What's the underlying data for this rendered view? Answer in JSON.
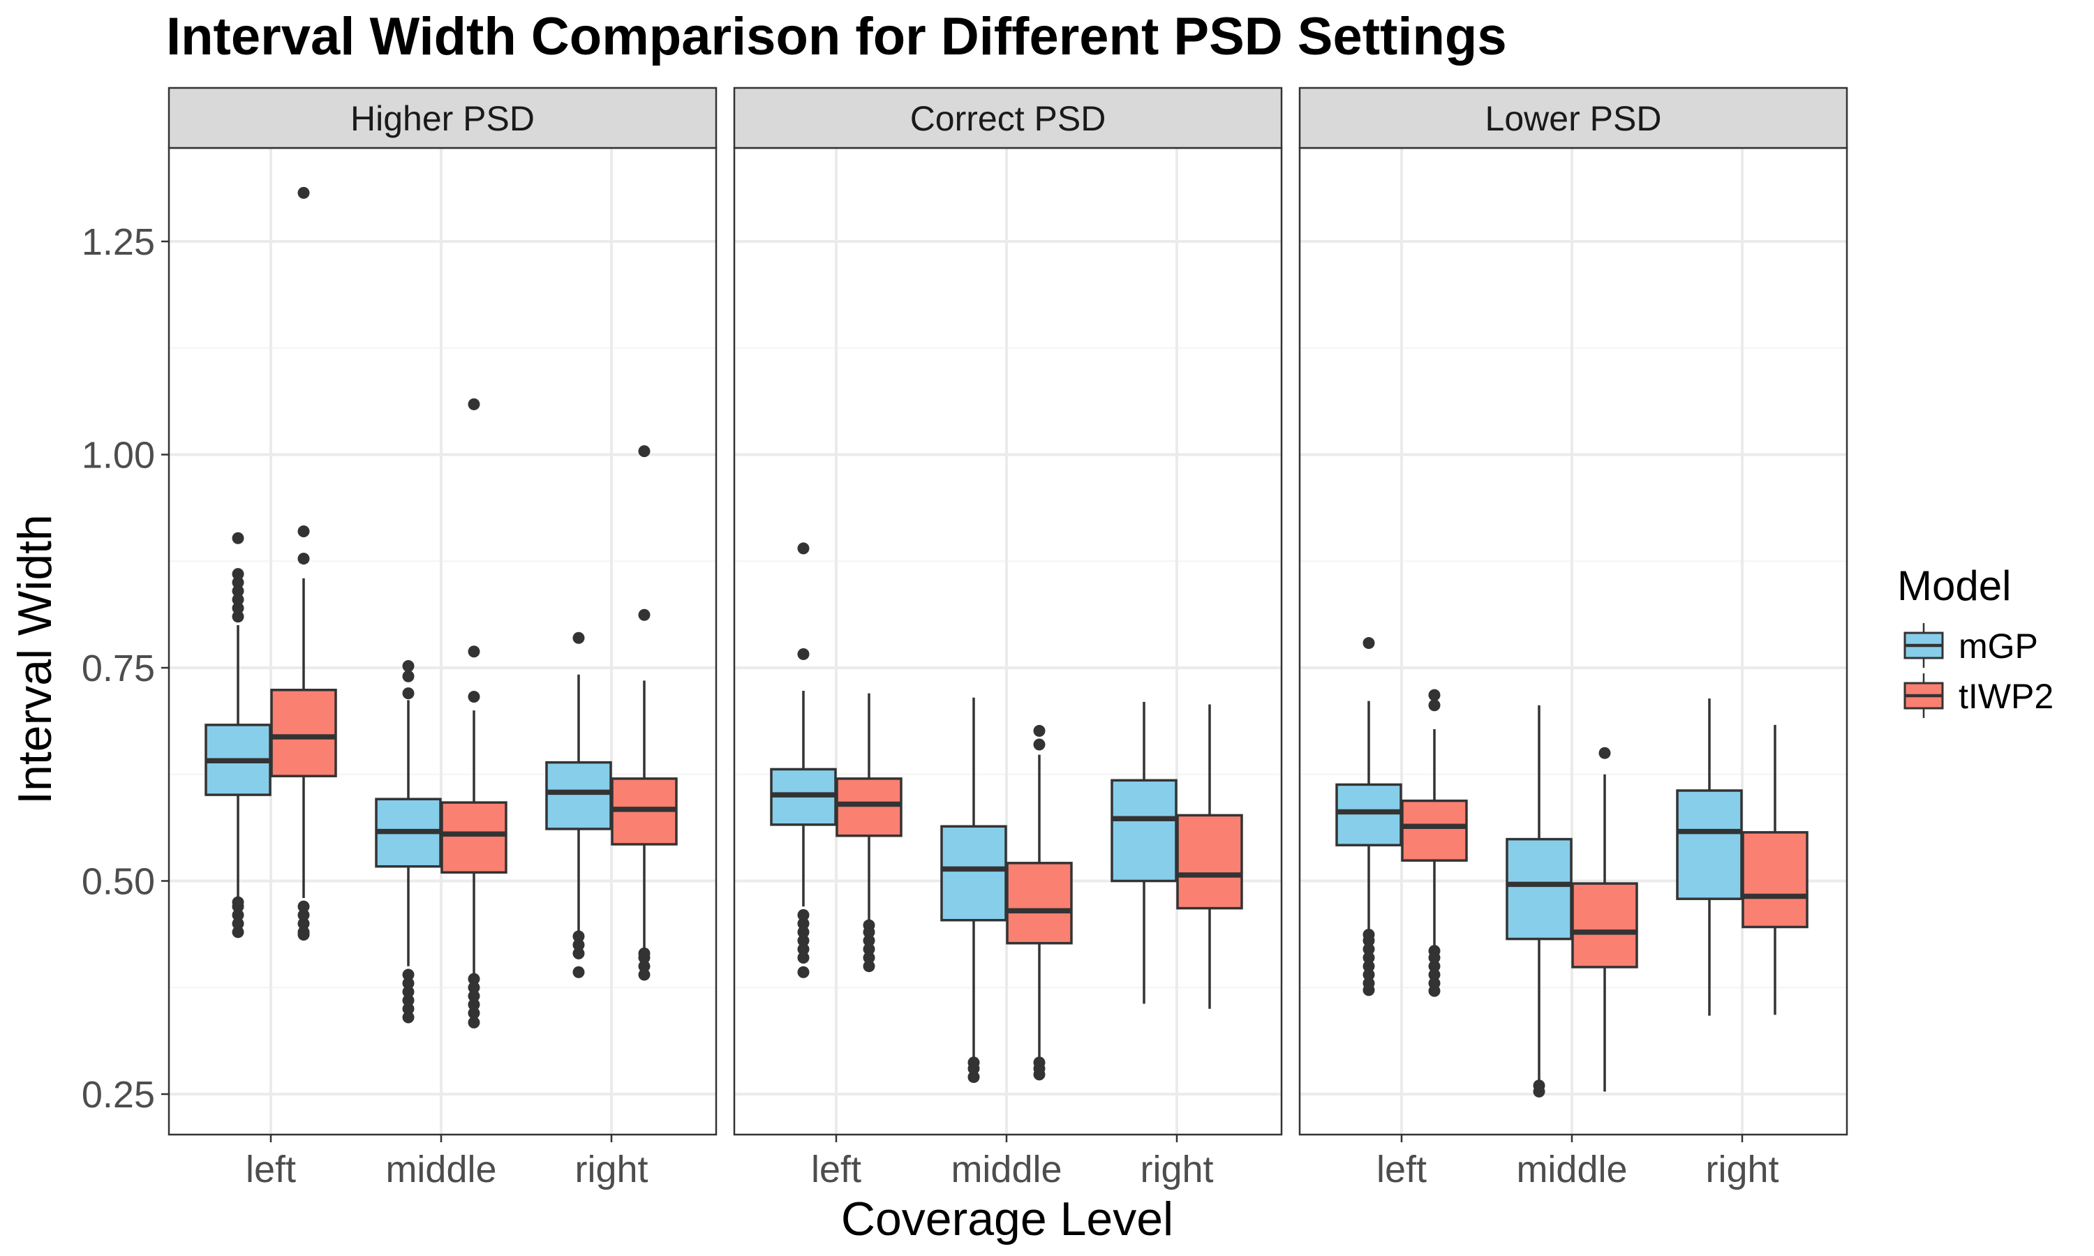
{
  "chart_data": {
    "type": "boxplot",
    "title": "Interval Width Comparison for Different PSD Settings",
    "xlabel": "Coverage Level",
    "ylabel": "Interval Width",
    "ylim": [
      0.2,
      1.36
    ],
    "yticks": [
      0.25,
      0.5,
      0.75,
      1.0
    ],
    "ytick_labels": [
      "0.25",
      "0.50",
      "0.75",
      "1.00"
    ],
    "extra_ytick": {
      "value": 1.25,
      "label": "1.25"
    },
    "categories": [
      "left",
      "middle",
      "right"
    ],
    "grid": true,
    "legend": {
      "title": "Model",
      "position": "right",
      "items": [
        {
          "name": "mGP",
          "color": "#87CEEB"
        },
        {
          "name": "tIWP2",
          "color": "#FA8072"
        }
      ]
    },
    "panels": [
      {
        "label": "Higher PSD",
        "groups": [
          {
            "category": "left",
            "model": "mGP",
            "whislo": 0.48,
            "q1": 0.601,
            "med": 0.641,
            "q3": 0.683,
            "whishi": 0.8,
            "outliers": [
              0.44,
              0.45,
              0.46,
              0.47,
              0.475,
              0.81,
              0.82,
              0.83,
              0.84,
              0.85,
              0.86,
              0.902
            ]
          },
          {
            "category": "left",
            "model": "tIWP2",
            "whislo": 0.48,
            "q1": 0.623,
            "med": 0.669,
            "q3": 0.724,
            "whishi": 0.855,
            "outliers": [
              0.437,
              0.44,
              0.45,
              0.46,
              0.47,
              0.878,
              0.91,
              1.307
            ]
          },
          {
            "category": "middle",
            "model": "mGP",
            "whislo": 0.4,
            "q1": 0.517,
            "med": 0.558,
            "q3": 0.596,
            "whishi": 0.712,
            "outliers": [
              0.34,
              0.35,
              0.36,
              0.37,
              0.38,
              0.39,
              0.72,
              0.74,
              0.752
            ]
          },
          {
            "category": "middle",
            "model": "tIWP2",
            "whislo": 0.39,
            "q1": 0.51,
            "med": 0.555,
            "q3": 0.592,
            "whishi": 0.7,
            "outliers": [
              0.334,
              0.345,
              0.355,
              0.365,
              0.375,
              0.385,
              0.716,
              0.769,
              1.059
            ]
          },
          {
            "category": "right",
            "model": "mGP",
            "whislo": 0.44,
            "q1": 0.561,
            "med": 0.604,
            "q3": 0.639,
            "whishi": 0.742,
            "outliers": [
              0.393,
              0.415,
              0.425,
              0.435,
              0.785
            ]
          },
          {
            "category": "right",
            "model": "tIWP2",
            "whislo": 0.42,
            "q1": 0.543,
            "med": 0.584,
            "q3": 0.62,
            "whishi": 0.735,
            "outliers": [
              0.39,
              0.4,
              0.41,
              0.415,
              0.812,
              1.004
            ]
          }
        ]
      },
      {
        "label": "Correct PSD",
        "groups": [
          {
            "category": "left",
            "model": "mGP",
            "whislo": 0.47,
            "q1": 0.566,
            "med": 0.601,
            "q3": 0.631,
            "whishi": 0.723,
            "outliers": [
              0.393,
              0.41,
              0.42,
              0.43,
              0.44,
              0.45,
              0.46,
              0.766,
              0.89
            ]
          },
          {
            "category": "left",
            "model": "tIWP2",
            "whislo": 0.45,
            "q1": 0.553,
            "med": 0.59,
            "q3": 0.62,
            "whishi": 0.72,
            "outliers": [
              0.4,
              0.41,
              0.42,
              0.43,
              0.44,
              0.448
            ]
          },
          {
            "category": "middle",
            "model": "mGP",
            "whislo": 0.29,
            "q1": 0.454,
            "med": 0.514,
            "q3": 0.564,
            "whishi": 0.715,
            "outliers": [
              0.27,
              0.28,
              0.287
            ]
          },
          {
            "category": "middle",
            "model": "tIWP2",
            "whislo": 0.29,
            "q1": 0.427,
            "med": 0.465,
            "q3": 0.521,
            "whishi": 0.648,
            "outliers": [
              0.273,
              0.28,
              0.287,
              0.66,
              0.676
            ]
          },
          {
            "category": "right",
            "model": "mGP",
            "whislo": 0.356,
            "q1": 0.5,
            "med": 0.573,
            "q3": 0.618,
            "whishi": 0.71,
            "outliers": []
          },
          {
            "category": "right",
            "model": "tIWP2",
            "whislo": 0.35,
            "q1": 0.468,
            "med": 0.507,
            "q3": 0.577,
            "whishi": 0.707,
            "outliers": []
          }
        ]
      },
      {
        "label": "Lower PSD",
        "groups": [
          {
            "category": "left",
            "model": "mGP",
            "whislo": 0.44,
            "q1": 0.542,
            "med": 0.581,
            "q3": 0.613,
            "whishi": 0.711,
            "outliers": [
              0.372,
              0.38,
              0.39,
              0.4,
              0.41,
              0.42,
              0.43,
              0.437,
              0.779
            ]
          },
          {
            "category": "left",
            "model": "tIWP2",
            "whislo": 0.42,
            "q1": 0.524,
            "med": 0.564,
            "q3": 0.594,
            "whishi": 0.678,
            "outliers": [
              0.371,
              0.38,
              0.39,
              0.4,
              0.41,
              0.418,
              0.706,
              0.718
            ]
          },
          {
            "category": "middle",
            "model": "mGP",
            "whislo": 0.264,
            "q1": 0.432,
            "med": 0.496,
            "q3": 0.549,
            "whishi": 0.706,
            "outliers": [
              0.253,
              0.26
            ]
          },
          {
            "category": "middle",
            "model": "tIWP2",
            "whislo": 0.253,
            "q1": 0.399,
            "med": 0.44,
            "q3": 0.497,
            "whishi": 0.625,
            "outliers": [
              0.65
            ]
          },
          {
            "category": "right",
            "model": "mGP",
            "whislo": 0.342,
            "q1": 0.479,
            "med": 0.558,
            "q3": 0.606,
            "whishi": 0.714,
            "outliers": []
          },
          {
            "category": "right",
            "model": "tIWP2",
            "whislo": 0.343,
            "q1": 0.446,
            "med": 0.482,
            "q3": 0.557,
            "whishi": 0.683,
            "outliers": []
          }
        ]
      }
    ]
  },
  "colors": {
    "mGP": "#87CEEB",
    "tIWP2": "#FA8072",
    "strip_background": "#D9D9D9",
    "panel_border": "#333333",
    "grid_major": "#EBEBEB",
    "grid_minor": "#F5F5F5",
    "box_stroke": "#333333"
  }
}
